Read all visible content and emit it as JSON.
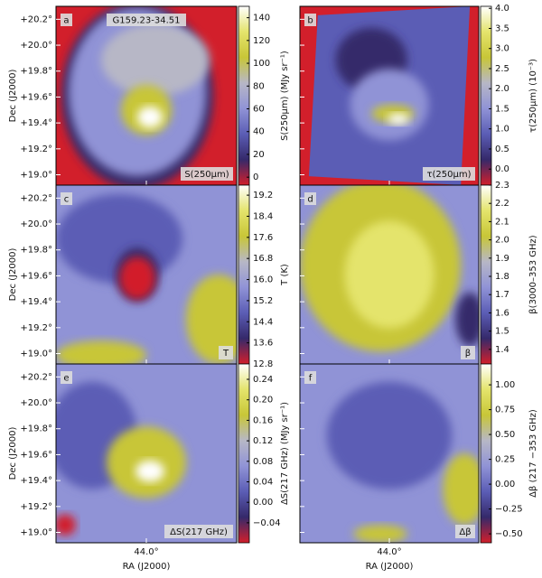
{
  "chart_data": {
    "type": "map-grid",
    "ylabel": "Dec (J2000)",
    "xlabel": "RA (J2000)",
    "ylim": [
      18.92,
      20.3
    ],
    "yticks": [
      {
        "value": 20.2,
        "label": "+20.2°"
      },
      {
        "value": 20.0,
        "label": "+20.0°"
      },
      {
        "value": 19.8,
        "label": "+19.8°"
      },
      {
        "value": 19.6,
        "label": "+19.6°"
      },
      {
        "value": 19.4,
        "label": "+19.4°"
      },
      {
        "value": 19.2,
        "label": "+19.2°"
      },
      {
        "value": 19.0,
        "label": "+19.0°"
      }
    ],
    "xlim": [
      44.7,
      43.3
    ],
    "xticks": [
      {
        "value": 44.0,
        "label": "44.0°"
      }
    ],
    "colormap": [
      "#d21f2b",
      "#35296a",
      "#5b5db5",
      "#9093d6",
      "#b7b7c6",
      "#c8c637",
      "#e4e46c",
      "#ffffff"
    ],
    "panels": [
      {
        "letter": "a",
        "title": "G159.23-34.51",
        "map_label": "S(250μm)",
        "colorbar_label": "S(250μm) (MJy sr⁻¹)",
        "clim": [
          -7,
          150
        ],
        "cticks": [
          0,
          20,
          40,
          60,
          80,
          100,
          120,
          140
        ]
      },
      {
        "letter": "b",
        "map_label": "τ(250μm)",
        "colorbar_label": "τ(250μm) (10⁻³)",
        "clim": [
          -0.4,
          4.05
        ],
        "cticks": [
          {
            "value": 0.0,
            "label": "0.0"
          },
          0.5,
          {
            "value": 1.0,
            "label": "1.0"
          },
          1.5,
          {
            "value": 2.0,
            "label": "2.0"
          },
          2.5,
          {
            "value": 3.0,
            "label": "3.0"
          },
          3.5,
          {
            "value": 4.0,
            "label": "4.0"
          }
        ]
      },
      {
        "letter": "c",
        "map_label": "T",
        "colorbar_label": "T (K)",
        "clim": [
          12.8,
          19.58
        ],
        "cticks": [
          12.8,
          13.6,
          14.4,
          15.2,
          {
            "value": 16.0,
            "label": "16.0"
          },
          16.8,
          17.6,
          18.4,
          19.2
        ]
      },
      {
        "letter": "d",
        "map_label": "β",
        "colorbar_label": "β(3000–353 GHz)",
        "clim": [
          1.32,
          2.3
        ],
        "cticks": [
          1.4,
          1.5,
          1.6,
          1.7,
          1.8,
          1.9,
          {
            "value": 2.0,
            "label": "2.0"
          },
          2.1,
          2.2,
          2.3
        ]
      },
      {
        "letter": "e",
        "map_label": "ΔS(217 GHz)",
        "colorbar_label": "ΔS(217 GHz) (MJy sr⁻¹)",
        "clim": [
          -0.079,
          0.27
        ],
        "cticks": [
          {
            "value": -0.04,
            "label": "−0.04"
          },
          {
            "value": 0.0,
            "label": "0.00"
          },
          {
            "value": 0.04,
            "label": "0.04"
          },
          {
            "value": 0.08,
            "label": "0.08"
          },
          {
            "value": 0.12,
            "label": "0.12"
          },
          {
            "value": 0.16,
            "label": "0.16"
          },
          {
            "value": 0.2,
            "label": "0.20"
          },
          {
            "value": 0.24,
            "label": "0.24"
          }
        ]
      },
      {
        "letter": "f",
        "map_label": "Δβ",
        "colorbar_label": "Δβ (217 −353 GHz)",
        "clim": [
          -0.59,
          1.21
        ],
        "cticks": [
          {
            "value": -0.5,
            "label": "−0.50"
          },
          {
            "value": -0.25,
            "label": "−0.25"
          },
          {
            "value": 0.0,
            "label": "0.00"
          },
          {
            "value": 0.25,
            "label": "0.25"
          },
          {
            "value": 0.5,
            "label": "0.50"
          },
          {
            "value": 0.75,
            "label": "0.75"
          },
          {
            "value": 1.0,
            "label": "1.00"
          }
        ]
      }
    ]
  }
}
